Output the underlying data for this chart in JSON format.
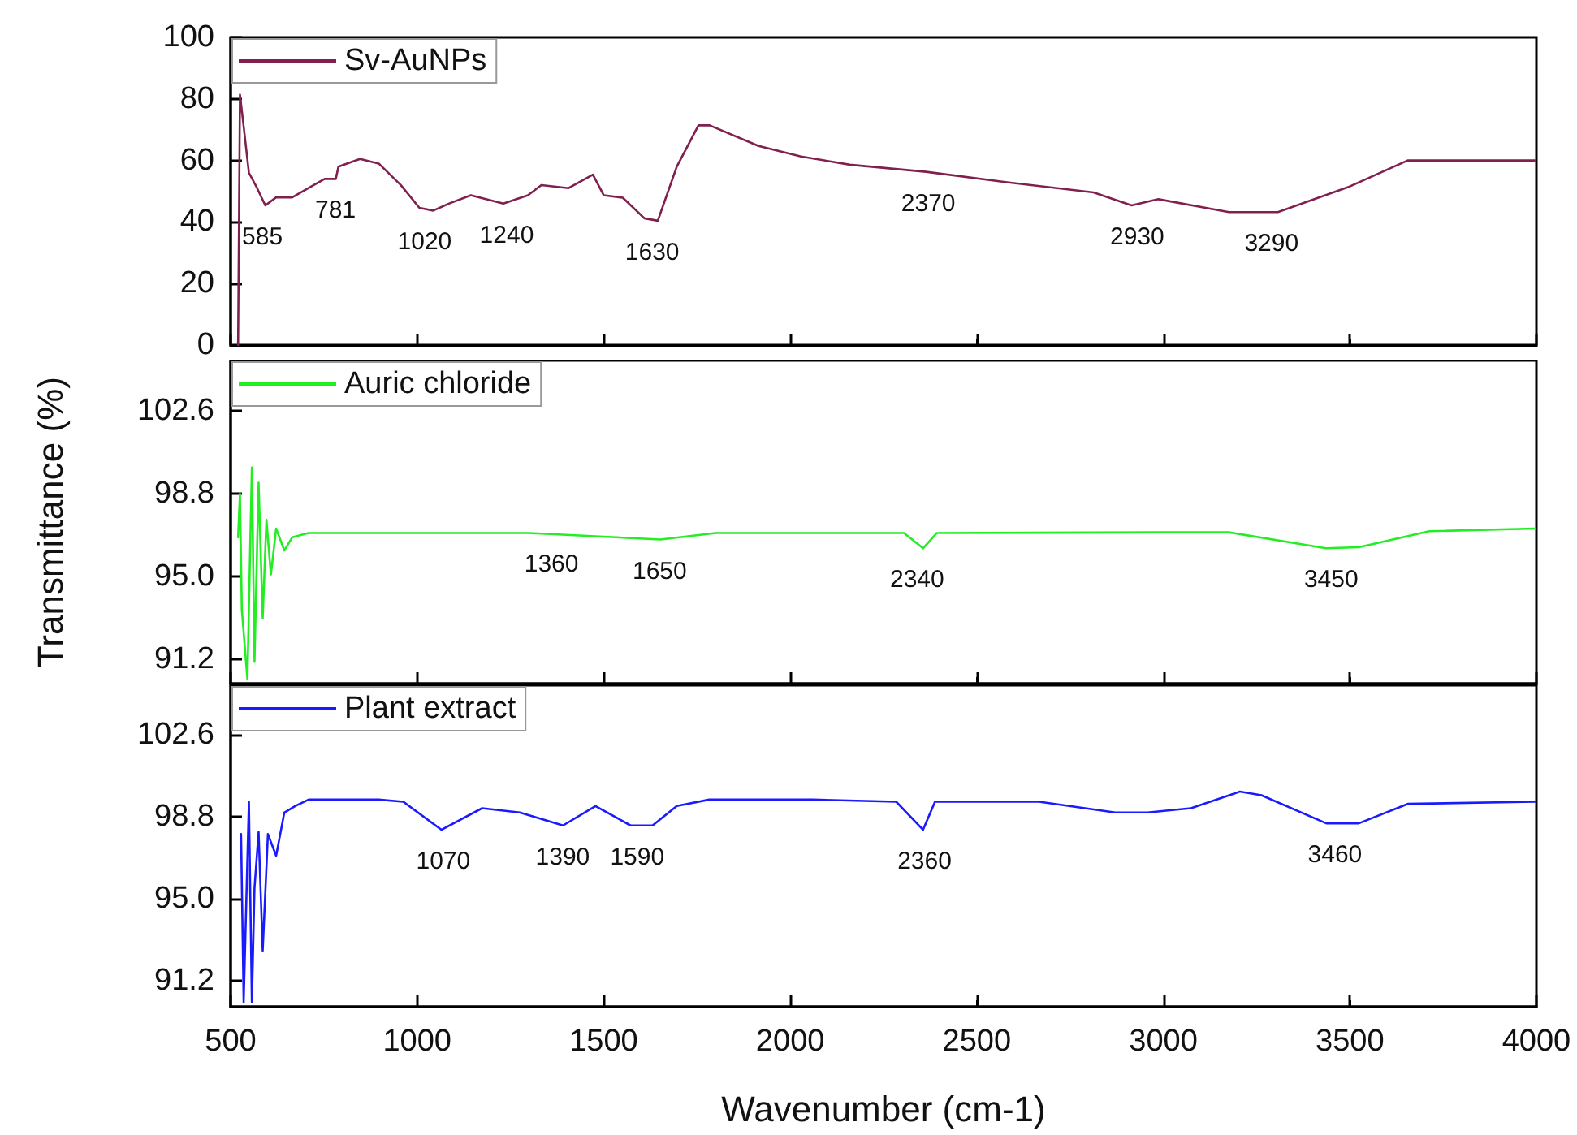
{
  "chart_data": [
    {
      "type": "line",
      "marker": "none",
      "line_style": "solid",
      "legend": "top left",
      "tick_labels": "y",
      "xlim": [
        500,
        4000
      ],
      "xticks": [
        500,
        1000,
        1500,
        2000,
        2500,
        3000,
        3500,
        4000
      ],
      "ylim": [
        0,
        100
      ],
      "yticks": [
        0,
        20,
        40,
        60,
        80,
        100
      ],
      "series": [
        {
          "name": "Sv-AuNPs",
          "color": "#80204f",
          "x": [
            520,
            525,
            535,
            549,
            571,
            593,
            622,
            665,
            723,
            752,
            782,
            789,
            847,
            897,
            956,
            1006,
            1043,
            1086,
            1144,
            1231,
            1297,
            1333,
            1406,
            1471,
            1500,
            1551,
            1609,
            1645,
            1696,
            1754,
            1784,
            1915,
            2029,
            2160,
            2364,
            2581,
            2813,
            2915,
            2987,
            3176,
            3307,
            3495,
            3655,
            3996
          ],
          "values": [
            0,
            81.4,
            71,
            56,
            51,
            45.4,
            48,
            48,
            52,
            54,
            54,
            58,
            60.5,
            59,
            52,
            44.6,
            43.7,
            46,
            48.7,
            46,
            48.7,
            52,
            51,
            55.4,
            48.7,
            47.9,
            41.2,
            40.4,
            58,
            71.4,
            71.4,
            64.7,
            61.3,
            58.6,
            56.3,
            52.9,
            49.6,
            45.4,
            47.4,
            43.2,
            43.2,
            51.3,
            60,
            60
          ]
        }
      ],
      "annotations": [
        {
          "text": "585",
          "x": 585,
          "y": 45.4
        },
        {
          "text": "781",
          "x": 781,
          "y": 54
        },
        {
          "text": "1020",
          "x": 1020,
          "y": 43.7
        },
        {
          "text": "1240",
          "x": 1240,
          "y": 46
        },
        {
          "text": "1630",
          "x": 1630,
          "y": 40.4
        },
        {
          "text": "2370",
          "x": 2370,
          "y": 56.3
        },
        {
          "text": "2930",
          "x": 2930,
          "y": 45.4
        },
        {
          "text": "3290",
          "x": 3290,
          "y": 43.2
        }
      ]
    },
    {
      "type": "line",
      "marker": "none",
      "line_style": "solid",
      "legend": "top left",
      "tick_labels": "y",
      "ylabel": "Transmittance (%)",
      "xlim": [
        500,
        4000
      ],
      "xticks": [
        500,
        1000,
        1500,
        2000,
        2500,
        3000,
        3500,
        4000
      ],
      "ylim": [
        90.1,
        104.9
      ],
      "yticks": [
        91.2,
        {
          "value": 95,
          "label": "95.0"
        },
        98.8,
        102.6
      ],
      "series": [
        {
          "name": "Auric chloride",
          "color": "#22ee22",
          "x": [
            520,
            525,
            530,
            545,
            557,
            564,
            575,
            586,
            596,
            608,
            622,
            644,
            665,
            709,
            1300,
            1652,
            1800,
            1971,
            2305,
            2356,
            2393,
            3001,
            3176,
            3436,
            3524,
            3713,
            3996
          ],
          "values": [
            96.8,
            98.8,
            93.5,
            90.3,
            100,
            91.1,
            99.3,
            93.1,
            97.6,
            95.1,
            97.2,
            96.2,
            96.8,
            97,
            97,
            96.7,
            97,
            97,
            97,
            96.3,
            97,
            97.03,
            97.03,
            96.3,
            96.35,
            97.08,
            97.2
          ]
        }
      ],
      "annotations": [
        {
          "text": "1360",
          "x": 1360,
          "y": 97
        },
        {
          "text": "1650",
          "x": 1650,
          "y": 96.7
        },
        {
          "text": "2340",
          "x": 2340,
          "y": 96.3
        },
        {
          "text": "3450",
          "x": 3450,
          "y": 96.3
        }
      ]
    },
    {
      "type": "line",
      "marker": "none",
      "line_style": "solid",
      "legend": "top left",
      "xlabel": "Wavenumber (cm-1)",
      "xlim": [
        500,
        4000
      ],
      "xticks": [
        500,
        1000,
        1500,
        2000,
        2500,
        3000,
        3500,
        4000
      ],
      "ylim": [
        90,
        104.9
      ],
      "yticks": [
        91.2,
        {
          "value": 95,
          "label": "95.0"
        },
        98.8,
        102.6
      ],
      "series": [
        {
          "name": "Plant extract",
          "color": "#1a1aff",
          "x": [
            528,
            535,
            549,
            557,
            564,
            575,
            586,
            600,
            622,
            644,
            673,
            709,
            897,
            963,
            1065,
            1174,
            1275,
            1391,
            1478,
            1572,
            1631,
            1696,
            1783,
            2059,
            2284,
            2356,
            2388,
            2667,
            2871,
            2958,
            3074,
            3205,
            3263,
            3437,
            3524,
            3655,
            3996
          ],
          "values": [
            98,
            90.2,
            99.5,
            90.2,
            95.5,
            98.1,
            92.6,
            98,
            97,
            99,
            99.3,
            99.6,
            99.6,
            99.5,
            98.2,
            99.2,
            99,
            98.4,
            99.3,
            98.4,
            98.4,
            99.3,
            99.6,
            99.6,
            99.5,
            98.2,
            99.5,
            99.5,
            99,
            99,
            99.2,
            99.97,
            99.8,
            98.5,
            98.5,
            99.4,
            99.5
          ]
        }
      ],
      "annotations": [
        {
          "text": "1070",
          "x": 1070,
          "y": 98.2
        },
        {
          "text": "1390",
          "x": 1390,
          "y": 98.4
        },
        {
          "text": "1590",
          "x": 1590,
          "y": 98.4
        },
        {
          "text": "2360",
          "x": 2360,
          "y": 98.2
        },
        {
          "text": "3460",
          "x": 3460,
          "y": 98.5
        }
      ]
    }
  ]
}
